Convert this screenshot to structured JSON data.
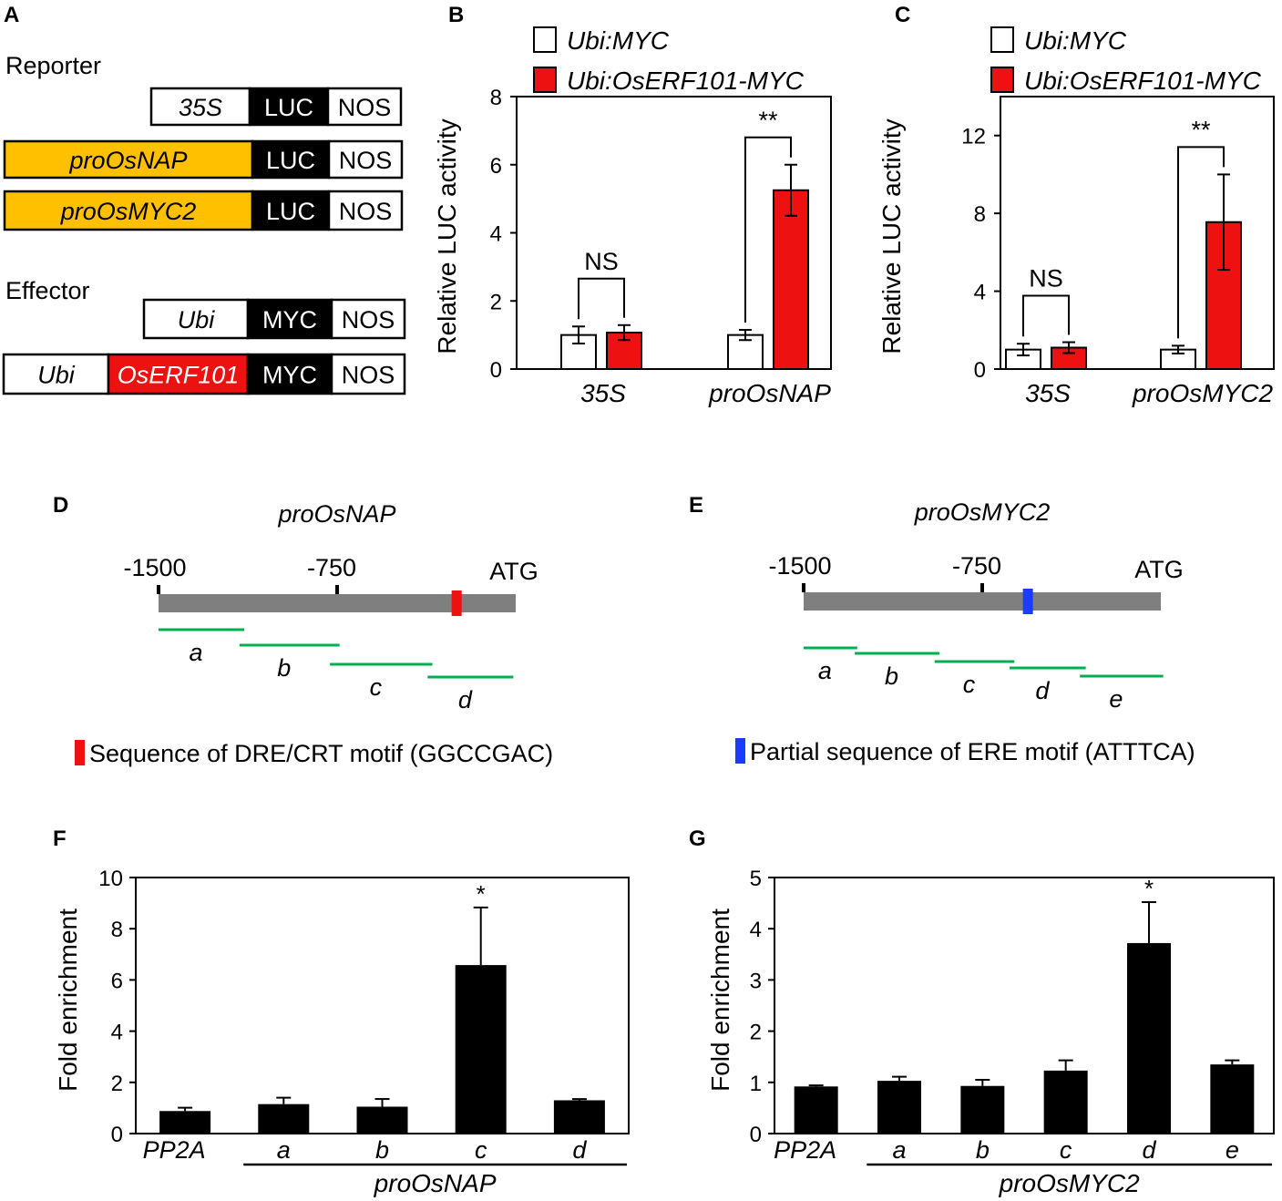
{
  "colors": {
    "black": "#000000",
    "white": "#ffffff",
    "red": "#ee1111",
    "gold": "#ffc000",
    "gray": "#7f7f7f",
    "green": "#00b050",
    "blue": "#1a3cff"
  },
  "panelA": {
    "label": "A",
    "reporter_title": "Reporter",
    "effector_title": "Effector",
    "constructs": [
      {
        "name": "reporter-35s",
        "parts": [
          {
            "text": "35S",
            "style": "white",
            "italic": true
          },
          {
            "text": "LUC",
            "style": "black",
            "italic": false
          },
          {
            "text": "NOS",
            "style": "white",
            "italic": false
          }
        ]
      },
      {
        "name": "reporter-proosnap",
        "parts": [
          {
            "text": "proOsNAP",
            "style": "gold",
            "italic": true
          },
          {
            "text": "LUC",
            "style": "black",
            "italic": false
          },
          {
            "text": "NOS",
            "style": "white",
            "italic": false
          }
        ]
      },
      {
        "name": "reporter-proosmyc2",
        "parts": [
          {
            "text": "proOsMYC2",
            "style": "gold",
            "italic": true
          },
          {
            "text": "LUC",
            "style": "black",
            "italic": false
          },
          {
            "text": "NOS",
            "style": "white",
            "italic": false
          }
        ]
      },
      {
        "name": "effector-ubi-myc",
        "parts": [
          {
            "text": "Ubi",
            "style": "white",
            "italic": true
          },
          {
            "text": "MYC",
            "style": "black",
            "italic": false
          },
          {
            "text": "NOS",
            "style": "white",
            "italic": false
          }
        ]
      },
      {
        "name": "effector-ubi-oserf101-myc",
        "parts": [
          {
            "text": "Ubi",
            "style": "white",
            "italic": true
          },
          {
            "text": "OsERF101",
            "style": "red",
            "italic": true
          },
          {
            "text": "MYC",
            "style": "black",
            "italic": false
          },
          {
            "text": "NOS",
            "style": "white",
            "italic": false
          }
        ]
      }
    ]
  },
  "panelD": {
    "label": "D",
    "title": "proOsNAP",
    "ticks": [
      "-1500",
      "-750"
    ],
    "end_label": "ATG",
    "motif_position_bp": -250,
    "fragments": [
      {
        "label": "a",
        "start": -1500,
        "end": -1140
      },
      {
        "label": "b",
        "start": -1160,
        "end": -740
      },
      {
        "label": "c",
        "start": -780,
        "end": -350
      },
      {
        "label": "d",
        "start": -370,
        "end": -10
      }
    ],
    "legend": "Sequence of DRE/CRT motif (GGCCGAC)"
  },
  "panelE": {
    "label": "E",
    "title": "proOsMYC2",
    "ticks": [
      "-1500",
      "-750"
    ],
    "end_label": "ATG",
    "motif_position_bp": -560,
    "fragments": [
      {
        "label": "a",
        "start": -1500,
        "end": -1275
      },
      {
        "label": "b",
        "start": -1285,
        "end": -930
      },
      {
        "label": "c",
        "start": -950,
        "end": -615
      },
      {
        "label": "d",
        "start": -635,
        "end": -315
      },
      {
        "label": "e",
        "start": -340,
        "end": 10
      }
    ],
    "legend": "Partial sequence of ERE motif (ATTTCA)"
  },
  "chart_data": [
    {
      "id": "B",
      "type": "bar",
      "ylabel": "Relative LUC activity",
      "ylim": [
        0,
        8
      ],
      "yticks": [
        0,
        2,
        4,
        6,
        8
      ],
      "categories": [
        "35S",
        "proOsNAP"
      ],
      "legend": [
        "Ubi:MYC",
        "Ubi:OsERF101-MYC"
      ],
      "series": [
        {
          "name": "Ubi:MYC",
          "values": [
            1.0,
            1.0
          ],
          "errors": [
            0.25,
            0.15
          ]
        },
        {
          "name": "Ubi:OsERF101-MYC",
          "values": [
            1.07,
            5.25
          ],
          "errors": [
            0.22,
            0.75
          ]
        }
      ],
      "significance": [
        "NS",
        "**"
      ]
    },
    {
      "id": "C",
      "type": "bar",
      "ylabel": "Relative LUC activity",
      "ylim": [
        0,
        14
      ],
      "yticks": [
        0,
        4,
        8,
        12
      ],
      "categories": [
        "35S",
        "proOsMYC2"
      ],
      "legend": [
        "Ubi:MYC",
        "Ubi:OsERF101-MYC"
      ],
      "series": [
        {
          "name": "Ubi:MYC",
          "values": [
            1.0,
            1.0
          ],
          "errors": [
            0.3,
            0.2
          ]
        },
        {
          "name": "Ubi:OsERF101-MYC",
          "values": [
            1.1,
            7.55
          ],
          "errors": [
            0.28,
            2.45
          ]
        }
      ],
      "significance": [
        "NS",
        "**"
      ]
    },
    {
      "id": "F",
      "type": "bar",
      "ylabel": "Fold enrichment",
      "ylim": [
        0,
        10
      ],
      "yticks": [
        0,
        2,
        4,
        6,
        8,
        10
      ],
      "categories": [
        "PP2A",
        "a",
        "b",
        "c",
        "d"
      ],
      "values": [
        0.88,
        1.15,
        1.05,
        6.58,
        1.3
      ],
      "errors": [
        0.13,
        0.25,
        0.3,
        2.25,
        0.05
      ],
      "significance": [
        "",
        "",
        "",
        "*",
        ""
      ],
      "group_label": "proOsNAP"
    },
    {
      "id": "G",
      "type": "bar",
      "ylabel": "Fold enrichment",
      "ylim": [
        0,
        5
      ],
      "yticks": [
        0,
        1,
        2,
        3,
        4,
        5
      ],
      "categories": [
        "PP2A",
        "a",
        "b",
        "c",
        "d",
        "e"
      ],
      "values": [
        0.92,
        1.03,
        0.93,
        1.23,
        3.72,
        1.35
      ],
      "errors": [
        0.02,
        0.08,
        0.12,
        0.2,
        0.8,
        0.08
      ],
      "significance": [
        "",
        "",
        "",
        "",
        "*",
        ""
      ],
      "group_label": "proOsMYC2"
    }
  ]
}
